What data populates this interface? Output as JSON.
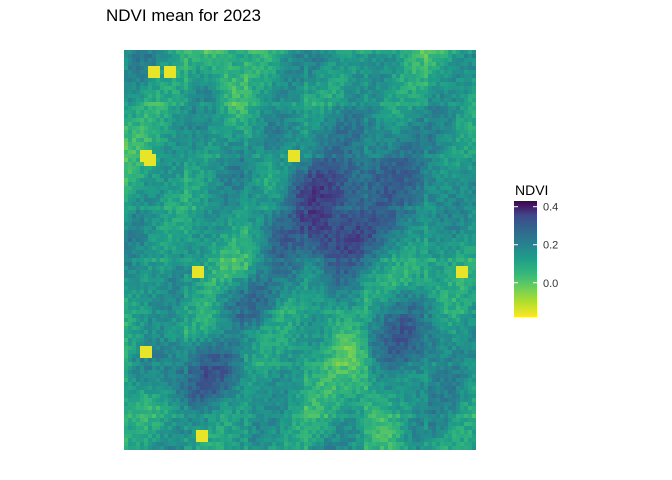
{
  "chart_data": {
    "type": "heatmap",
    "title": "NDVI mean for 2023",
    "xlabel": "",
    "ylabel": "",
    "colormap": "viridis",
    "colorbar_reversed": true,
    "legend": {
      "title": "NDVI",
      "placement": "right",
      "ticks": [
        {
          "value": 0.4,
          "label": "0.4"
        },
        {
          "value": 0.2,
          "label": "0.2"
        },
        {
          "value": 0.0,
          "label": "0.0"
        }
      ],
      "range": [
        -0.18,
        0.43
      ]
    },
    "grid": false,
    "approx_cols": 88,
    "approx_rows": 100,
    "base_value": 0.1
  },
  "colors": {
    "low": "#fde725",
    "mid": "#21918c",
    "high": "#440154"
  }
}
